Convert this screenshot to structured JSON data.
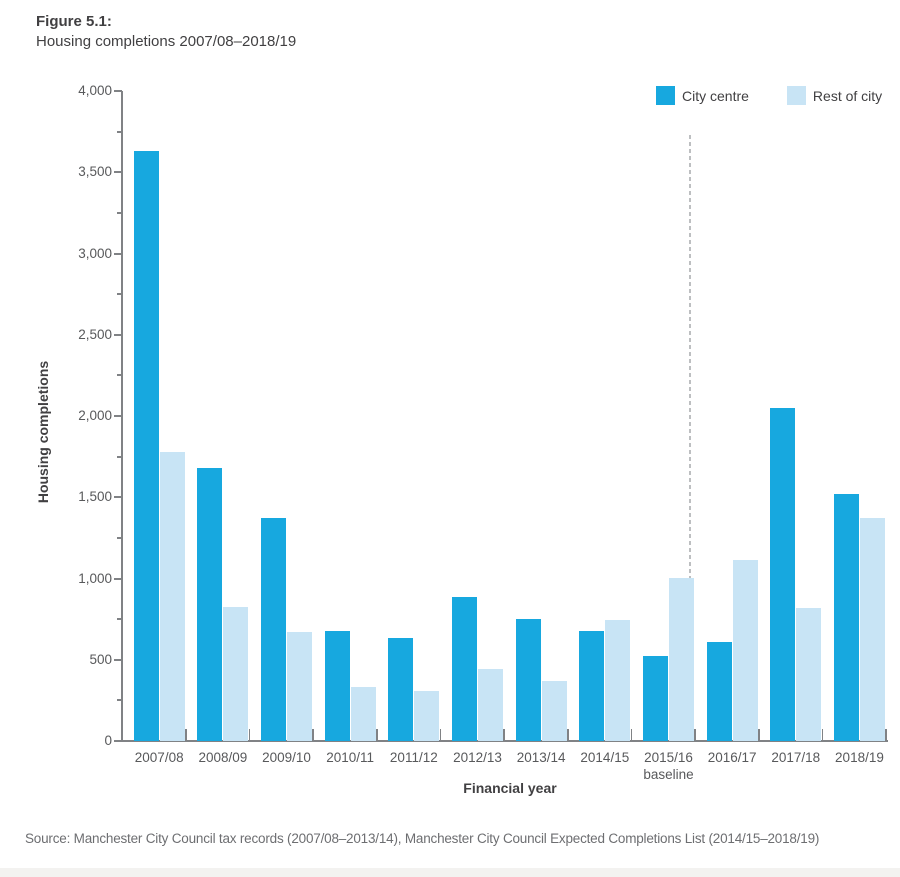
{
  "figure": {
    "label": "Figure 5.1:",
    "title": "Housing completions 2007/08–2018/19"
  },
  "chart_data": {
    "type": "bar",
    "title": "Housing completions 2007/08–2018/19",
    "xlabel": "Financial year",
    "ylabel": "Housing completions",
    "ylim": [
      0,
      4000
    ],
    "ytick_interval": 500,
    "ytick_minor_interval": 250,
    "ytick_labels": [
      "0",
      "500",
      "1,000",
      "1,500",
      "2,000",
      "2,500",
      "3,000",
      "3,500",
      "4,000"
    ],
    "categories": [
      "2007/08",
      "2008/09",
      "2009/10",
      "2010/11",
      "2011/12",
      "2012/13",
      "2013/14",
      "2014/15",
      "2015/16",
      "2016/17",
      "2017/18",
      "2018/19"
    ],
    "baseline_category": "2015/16",
    "baseline_note": "baseline",
    "series": [
      {
        "name": "City centre",
        "color": "#17A8DF",
        "values": [
          3630,
          1680,
          1375,
          675,
          635,
          885,
          750,
          675,
          525,
          610,
          2050,
          1520
        ]
      },
      {
        "name": "Rest of city",
        "color": "#C8E4F5",
        "values": [
          1780,
          825,
          670,
          335,
          310,
          440,
          370,
          745,
          1000,
          1115,
          820,
          1370
        ]
      }
    ],
    "annotations": [
      {
        "type": "vline",
        "style": "dashed",
        "after_category": "2015/16",
        "color": "#bdbfc1"
      }
    ],
    "legend_position": "top-right",
    "grid": false
  },
  "source": "Source: Manchester City Council tax records (2007/08–2013/14), Manchester City Council Expected Completions List (2014/15–2018/19)",
  "colors": {
    "city_centre": "#17A8DF",
    "rest_of_city": "#C8E4F5",
    "axis": "#808285",
    "text_dark": "#414042",
    "text_gray": "#58595B",
    "source_gray": "#6D6E71",
    "dashed_line": "#bdbfc1",
    "bottom_band": "#F3F2F0"
  }
}
